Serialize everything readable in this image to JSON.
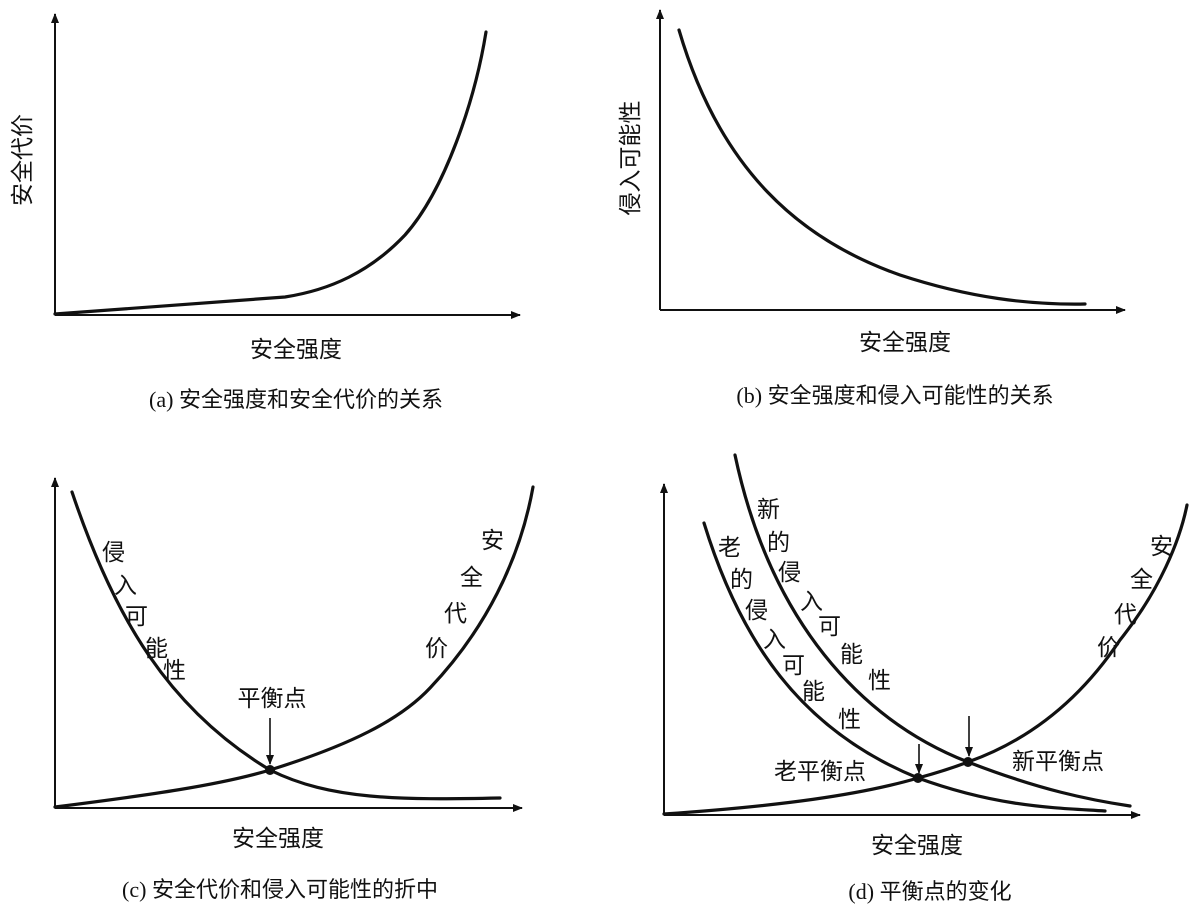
{
  "panels": {
    "a": {
      "caption": "(a) 安全强度和安全代价的关系",
      "xlabel": "安全强度",
      "ylabel": "安全代价"
    },
    "b": {
      "caption": "(b) 安全强度和侵入可能性的关系",
      "xlabel": "安全强度",
      "ylabel": "侵入可能性"
    },
    "c": {
      "caption": "(c) 安全代价和侵入可能性的折中",
      "xlabel": "安全强度",
      "curve_label_intrusion": [
        "侵",
        "入",
        "可",
        "能",
        "性"
      ],
      "curve_label_cost": [
        "安",
        "全",
        "代",
        "价"
      ],
      "point_label": "平衡点"
    },
    "d": {
      "caption": "(d) 平衡点的变化",
      "xlabel": "安全强度",
      "curve_label_old": [
        "老",
        "的",
        "侵",
        "入",
        "可",
        "能",
        "性"
      ],
      "curve_label_new": [
        "新",
        "的",
        "侵",
        "入",
        "可",
        "能",
        "性"
      ],
      "curve_label_cost": [
        "安",
        "全",
        "代",
        "价"
      ],
      "point_label_old": "老平衡点",
      "point_label_new": "新平衡点"
    }
  }
}
